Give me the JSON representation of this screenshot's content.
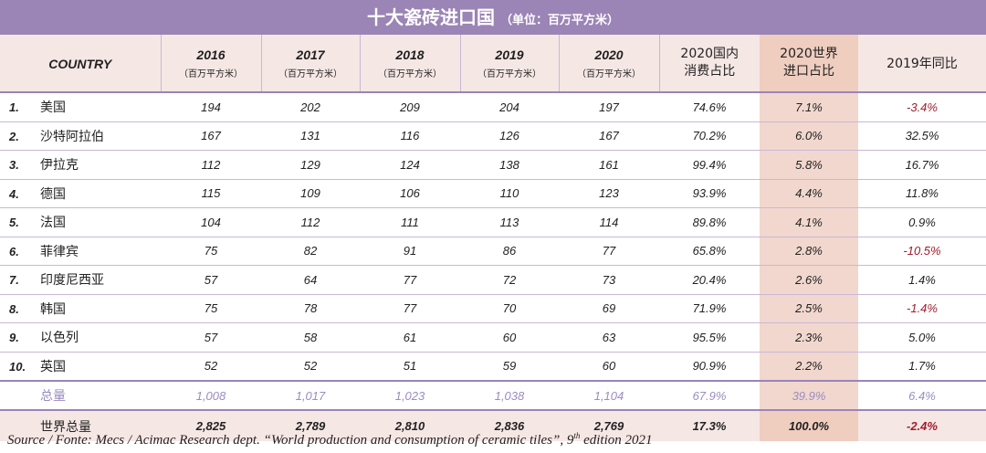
{
  "title": {
    "main": "十大瓷砖进口国",
    "unit": "（单位：百万平方米）"
  },
  "header": {
    "country": "COUNTRY",
    "unit": "（百万平方米）",
    "years": [
      "2016",
      "2017",
      "2018",
      "2019",
      "2020"
    ],
    "col_consumption": "2020国内消费占比",
    "col_world_share": "2020世界进口占比",
    "col_yoy": "2019年同比"
  },
  "rows": [
    {
      "rank": "1.",
      "name": "美国",
      "v2016": "194",
      "v2017": "202",
      "v2018": "209",
      "v2019": "204",
      "v2020": "197",
      "consumption": "74.6%",
      "world_share": "7.1%",
      "yoy": "-3.4%"
    },
    {
      "rank": "2.",
      "name": "沙特阿拉伯",
      "v2016": "167",
      "v2017": "131",
      "v2018": "116",
      "v2019": "126",
      "v2020": "167",
      "consumption": "70.2%",
      "world_share": "6.0%",
      "yoy": "32.5%"
    },
    {
      "rank": "3.",
      "name": "伊拉克",
      "v2016": "112",
      "v2017": "129",
      "v2018": "124",
      "v2019": "138",
      "v2020": "161",
      "consumption": "99.4%",
      "world_share": "5.8%",
      "yoy": "16.7%"
    },
    {
      "rank": "4.",
      "name": "德国",
      "v2016": "115",
      "v2017": "109",
      "v2018": "106",
      "v2019": "110",
      "v2020": "123",
      "consumption": "93.9%",
      "world_share": "4.4%",
      "yoy": "11.8%"
    },
    {
      "rank": "5.",
      "name": "法国",
      "v2016": "104",
      "v2017": "112",
      "v2018": "111",
      "v2019": "113",
      "v2020": "114",
      "consumption": "89.8%",
      "world_share": "4.1%",
      "yoy": "0.9%"
    },
    {
      "rank": "6.",
      "name": "菲律宾",
      "v2016": "75",
      "v2017": "82",
      "v2018": "91",
      "v2019": "86",
      "v2020": "77",
      "consumption": "65.8%",
      "world_share": "2.8%",
      "yoy": "-10.5%"
    },
    {
      "rank": "7.",
      "name": "印度尼西亚",
      "v2016": "57",
      "v2017": "64",
      "v2018": "77",
      "v2019": "72",
      "v2020": "73",
      "consumption": "20.4%",
      "world_share": "2.6%",
      "yoy": "1.4%"
    },
    {
      "rank": "8.",
      "name": "韩国",
      "v2016": "75",
      "v2017": "78",
      "v2018": "77",
      "v2019": "70",
      "v2020": "69",
      "consumption": "71.9%",
      "world_share": "2.5%",
      "yoy": "-1.4%"
    },
    {
      "rank": "9.",
      "name": "以色列",
      "v2016": "57",
      "v2017": "58",
      "v2018": "61",
      "v2019": "60",
      "v2020": "63",
      "consumption": "95.5%",
      "world_share": "2.3%",
      "yoy": "5.0%"
    },
    {
      "rank": "10.",
      "name": "英国",
      "v2016": "52",
      "v2017": "52",
      "v2018": "51",
      "v2019": "59",
      "v2020": "60",
      "consumption": "90.9%",
      "world_share": "2.2%",
      "yoy": "1.7%"
    }
  ],
  "total": {
    "name": "总量",
    "v2016": "1,008",
    "v2017": "1,017",
    "v2018": "1,023",
    "v2019": "1,038",
    "v2020": "1,104",
    "consumption": "67.9%",
    "world_share": "39.9%",
    "yoy": "6.4%"
  },
  "world": {
    "name": "世界总量",
    "v2016": "2,825",
    "v2017": "2,789",
    "v2018": "2,810",
    "v2019": "2,836",
    "v2020": "2,769",
    "consumption": "17.3%",
    "world_share": "100.0%",
    "yoy": "-2.4%"
  },
  "source": {
    "text_before": "Source / Fonte: Mecs / Acimac Research dept. “World production and consumption of ceramic tiles”, 9",
    "superscript": "th",
    "text_after": " edition 2021"
  },
  "colors": {
    "header_bar": "#9b84b6",
    "highlight": "#f1d7cd",
    "negative": "#a11d2c",
    "total_text": "#9a8cc0"
  }
}
